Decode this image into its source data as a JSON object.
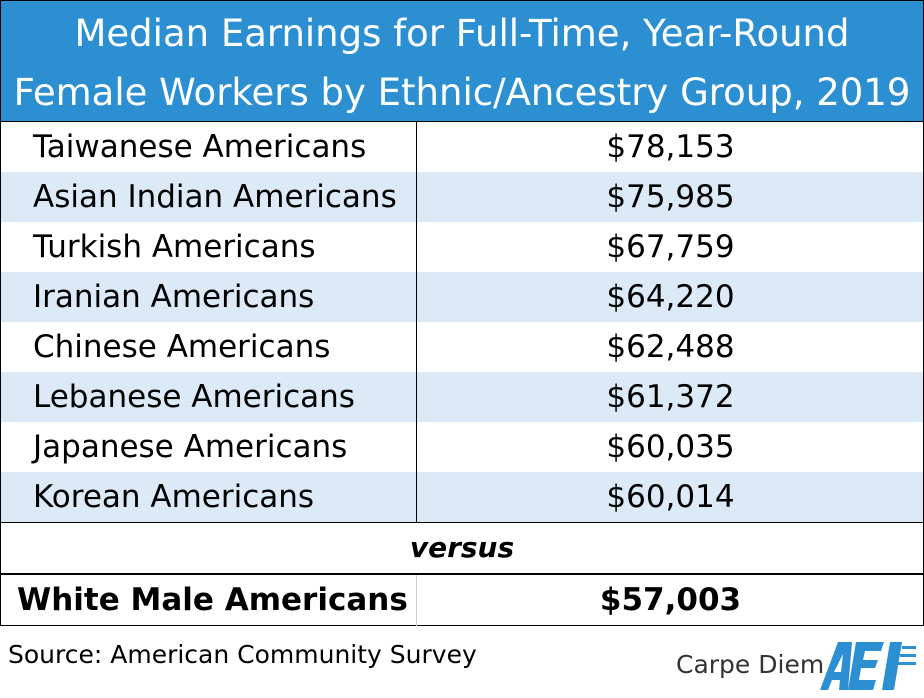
{
  "chart_data": {
    "type": "table",
    "title_line1": "Median Earnings for Full-Time, Year-Round",
    "title_line2": "Female Workers by Ethnic/Ancestry Group, 2019",
    "rows": [
      {
        "group": "Taiwanese Americans",
        "value": "$78,153"
      },
      {
        "group": "Asian Indian Americans",
        "value": "$75,985"
      },
      {
        "group": "Turkish Americans",
        "value": "$67,759"
      },
      {
        "group": "Iranian Americans",
        "value": "$64,220"
      },
      {
        "group": "Chinese Americans",
        "value": "$62,488"
      },
      {
        "group": "Lebanese Americans",
        "value": "$61,372"
      },
      {
        "group": "Japanese Americans",
        "value": "$60,035"
      },
      {
        "group": "Korean Americans",
        "value": "$60,014"
      }
    ],
    "separator": "versus",
    "comparison": {
      "group": "White Male Americans",
      "value": "$57,003"
    }
  },
  "footer": {
    "source": "Source: American Community Survey",
    "brand": "Carpe Diem",
    "logo_text": "AEI"
  },
  "colors": {
    "header_bg": "#2b8fd2",
    "alt_row_bg": "#dce9f6",
    "logo": "#2b8fd2"
  }
}
